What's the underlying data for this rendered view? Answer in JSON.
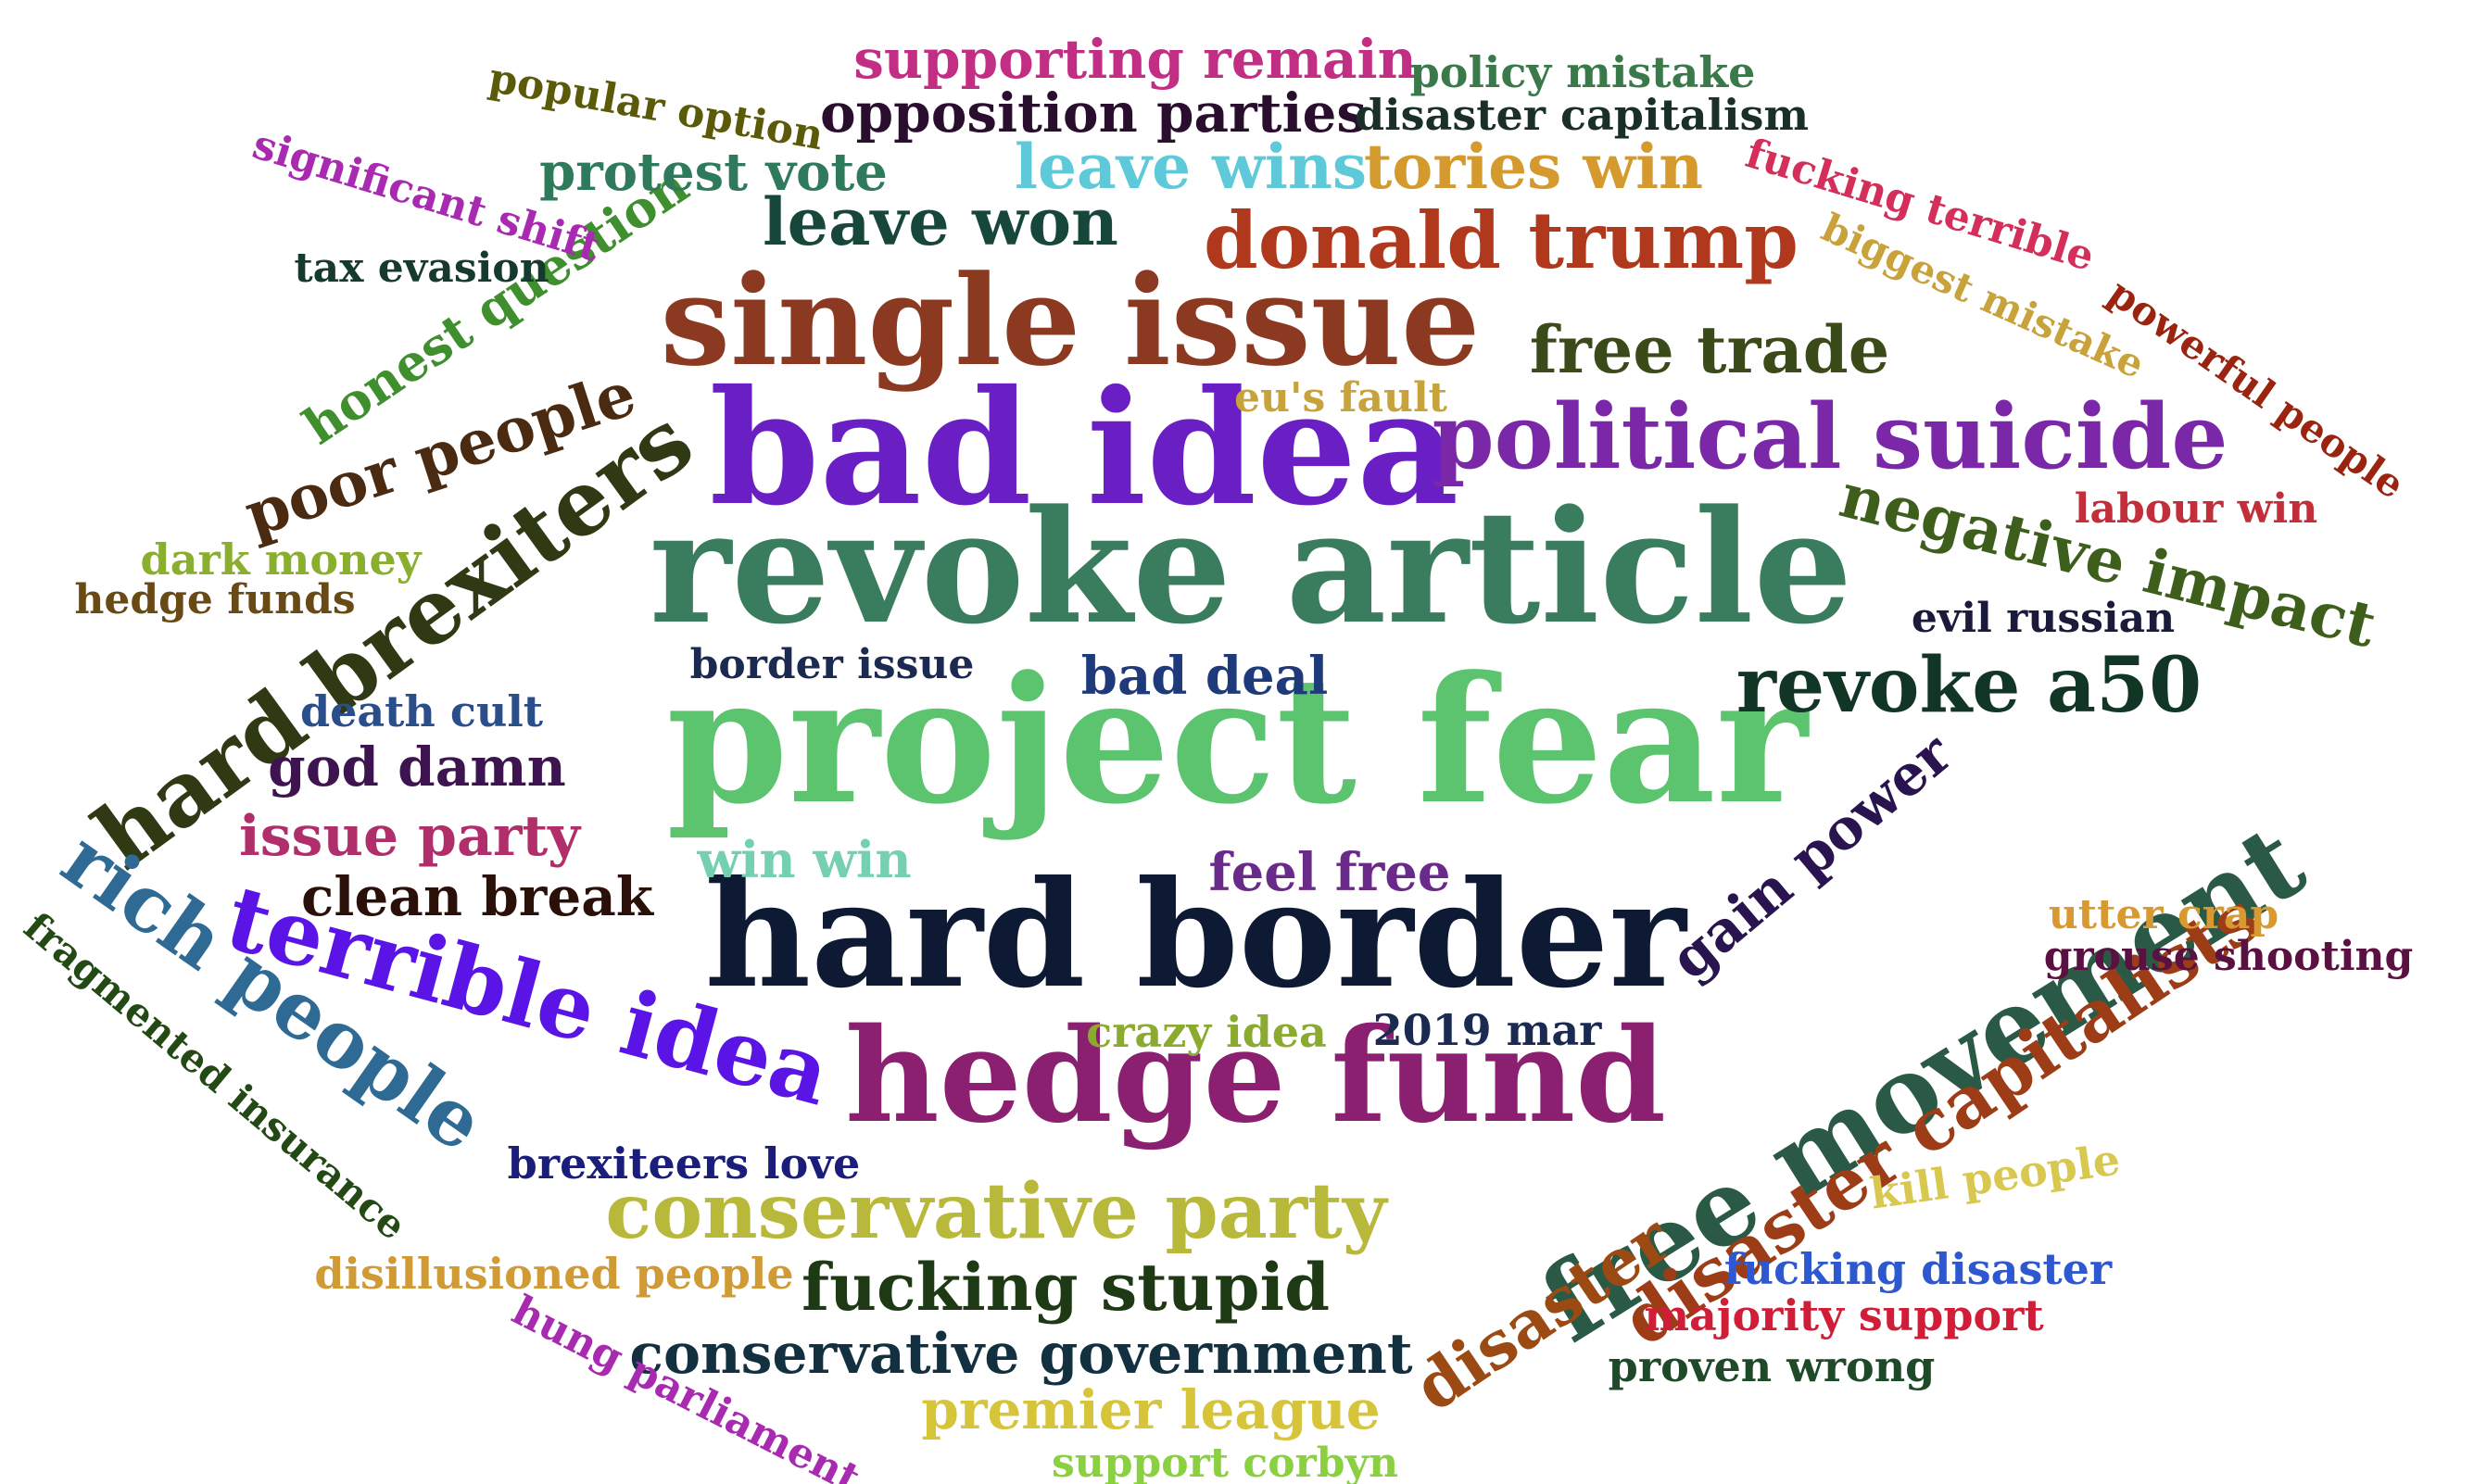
{
  "words": [
    {
      "text": "project fear",
      "color": "#5cc46e"
    },
    {
      "text": "revoke article",
      "color": "#3a7d5e"
    },
    {
      "text": "hard border",
      "color": "#0e1a33"
    },
    {
      "text": "bad idea",
      "color": "#6a1fc4"
    },
    {
      "text": "hedge fund",
      "color": "#8b1f70"
    },
    {
      "text": "single issue",
      "color": "#8b3a21"
    },
    {
      "text": "free movement",
      "color": "#2a5a45"
    },
    {
      "text": "hard brexiters",
      "color": "#2f3a14"
    },
    {
      "text": "political suicide",
      "color": "#7a28a8"
    },
    {
      "text": "terrible idea",
      "color": "#5a14e6"
    },
    {
      "text": "rich people",
      "color": "#2e6a94"
    },
    {
      "text": "conservative party",
      "color": "#b8b83a"
    },
    {
      "text": "donald trump",
      "color": "#b0381c"
    },
    {
      "text": "revoke a50",
      "color": "#123626"
    },
    {
      "text": "disaster capitalists",
      "color": "#9c3d17"
    },
    {
      "text": "disaster",
      "color": "#9c4a14"
    },
    {
      "text": "fucking stupid",
      "color": "#1d3a14"
    },
    {
      "text": "negative impact",
      "color": "#3e5e1c"
    },
    {
      "text": "free trade",
      "color": "#3a4a18"
    },
    {
      "text": "leave won",
      "color": "#16473a"
    },
    {
      "text": "poor people",
      "color": "#4a2a10"
    },
    {
      "text": "gain power",
      "color": "#2a1450"
    },
    {
      "text": "conservative government",
      "color": "#123040"
    },
    {
      "text": "honest question",
      "color": "#3f8f2e"
    },
    {
      "text": "leave wins",
      "color": "#5ec9d8"
    },
    {
      "text": "tories win",
      "color": "#d49a2e"
    },
    {
      "text": "opposition parties",
      "color": "#2a0e2e"
    },
    {
      "text": "supporting remain",
      "color": "#c22e84"
    },
    {
      "text": "premier league",
      "color": "#d6c43a"
    },
    {
      "text": "issue party",
      "color": "#b02e6a"
    },
    {
      "text": "clean break",
      "color": "#2a1008"
    },
    {
      "text": "protest vote",
      "color": "#2e7a5a"
    },
    {
      "text": "feel free",
      "color": "#6a2a8a"
    },
    {
      "text": "god damn",
      "color": "#3e1450"
    },
    {
      "text": "bad deal",
      "color": "#1e3a7a"
    },
    {
      "text": "win win",
      "color": "#74d0b0"
    },
    {
      "text": "fragmented insurance",
      "color": "#234a14"
    },
    {
      "text": "hung parliament",
      "color": "#a82ab0"
    },
    {
      "text": "disillusioned people",
      "color": "#d09a34"
    },
    {
      "text": "crazy idea",
      "color": "#8aaa30"
    },
    {
      "text": "2019 mar",
      "color": "#1a2a50"
    },
    {
      "text": "brexiteers love",
      "color": "#1a1e7a"
    },
    {
      "text": "death cult",
      "color": "#2a4e8a"
    },
    {
      "text": "border issue",
      "color": "#1a2a50"
    },
    {
      "text": "dark money",
      "color": "#8aae2e"
    },
    {
      "text": "hedge funds",
      "color": "#6a4a14"
    },
    {
      "text": "tax evasion",
      "color": "#163a2e"
    },
    {
      "text": "significant shift",
      "color": "#a82ab0"
    },
    {
      "text": "popular option",
      "color": "#5a5a08"
    },
    {
      "text": "policy mistake",
      "color": "#3a7a4a"
    },
    {
      "text": "disaster capitalism",
      "color": "#1a2e2a"
    },
    {
      "text": "fucking terrible",
      "color": "#d42e5a"
    },
    {
      "text": "biggest mistake",
      "color": "#c8a23a"
    },
    {
      "text": "powerful people",
      "color": "#9a2410"
    },
    {
      "text": "labour win",
      "color": "#c22e3a"
    },
    {
      "text": "evil russian",
      "color": "#1a1a3a"
    },
    {
      "text": "eu's fault",
      "color": "#c8a23a"
    },
    {
      "text": "utter crap",
      "color": "#d89a30"
    },
    {
      "text": "grouse shooting",
      "color": "#5a1040"
    },
    {
      "text": "kill people",
      "color": "#d8c850"
    },
    {
      "text": "fucking disaster",
      "color": "#2e58d0"
    },
    {
      "text": "majority support",
      "color": "#d01e38"
    },
    {
      "text": "proven wrong",
      "color": "#1e4a2a"
    },
    {
      "text": "support corbyn",
      "color": "#8ad040"
    }
  ]
}
